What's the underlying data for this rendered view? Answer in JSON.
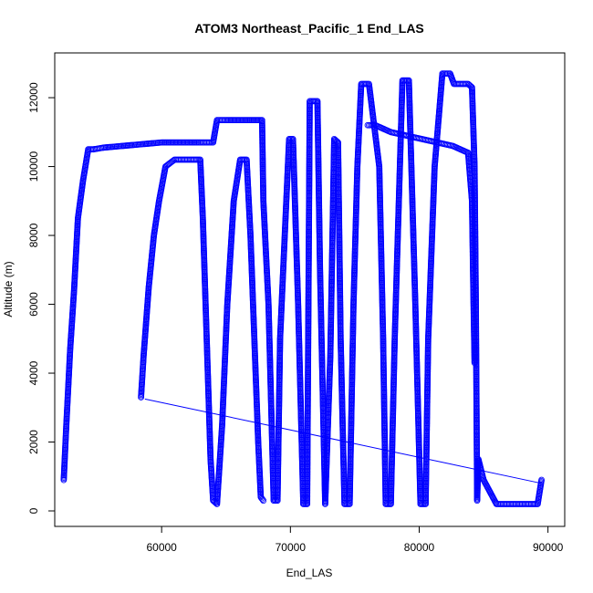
{
  "chart_data": {
    "type": "scatter",
    "title": "ATOM3 Northeast_Pacific_1 End_LAS",
    "xlabel": "End_LAS",
    "ylabel": "Altitude (m)",
    "xlim": [
      51700,
      91300
    ],
    "ylim": [
      -450,
      13300
    ],
    "x_ticks": [
      60000,
      70000,
      80000,
      90000
    ],
    "x_tick_labels": [
      "60000",
      "70000",
      "80000",
      "90000"
    ],
    "y_ticks": [
      0,
      2000,
      4000,
      6000,
      8000,
      10000,
      12000
    ],
    "y_tick_labels": [
      "0",
      "2000",
      "4000",
      "6000",
      "8000",
      "10000",
      "12000"
    ],
    "grid": false,
    "marker": "open-circle",
    "point_color": "#0000ff",
    "series": [
      {
        "style": "points",
        "x": [
          52400,
          52600,
          52900,
          53200,
          53500,
          53900,
          54300,
          54700,
          55500,
          57000,
          58500,
          60000,
          61500,
          63000,
          64000,
          64300,
          65000,
          66500,
          67800,
          67900,
          68300,
          68700,
          69000,
          69200,
          69500,
          69900,
          70200,
          70600,
          71000,
          71300,
          71500,
          72100,
          72300,
          72700,
          73100,
          73400,
          73700,
          73900,
          74200,
          74600,
          74900,
          75200,
          75500,
          75700,
          76100,
          76900,
          77200,
          77400,
          77800,
          78100,
          78500,
          78700,
          79200,
          79700,
          80100,
          80500,
          80700,
          81200,
          81800,
          82400,
          82700,
          83300,
          83800,
          84100,
          84300,
          84400,
          84500,
          84600,
          85000,
          86000,
          87000,
          88000,
          88200,
          88500,
          88800,
          89200,
          89500
        ],
        "y": [
          900,
          2500,
          4700,
          6400,
          8500,
          9600,
          10500,
          10500,
          10550,
          10600,
          10650,
          10700,
          10700,
          10700,
          10700,
          11350,
          11350,
          11350,
          11350,
          9000,
          6000,
          300,
          300,
          5000,
          7500,
          10800,
          10800,
          6000,
          200,
          200,
          11900,
          11900,
          7000,
          200,
          4500,
          10800,
          10700,
          5000,
          200,
          200,
          6000,
          10000,
          12400,
          12400,
          12400,
          10000,
          5000,
          200,
          200,
          5000,
          10000,
          12500,
          12500,
          6000,
          200,
          200,
          5000,
          10000,
          12700,
          12700,
          12400,
          12400,
          12400,
          12300,
          10000,
          6000,
          300,
          1500,
          900,
          200,
          200,
          200,
          200,
          200,
          200,
          200,
          900
        ]
      },
      {
        "style": "points",
        "x": [
          58400,
          58600,
          59000,
          59400,
          59800,
          60300,
          61000,
          62000,
          63000,
          63200,
          63500,
          63800,
          64000,
          64300,
          64700,
          65100,
          65600,
          66100,
          66600,
          66900,
          67200,
          67500,
          67700,
          67900
        ],
        "y": [
          3300,
          4500,
          6500,
          8000,
          9000,
          10000,
          10200,
          10200,
          10200,
          8500,
          5000,
          1500,
          300,
          200,
          2500,
          6000,
          9000,
          10200,
          10200,
          8000,
          5000,
          2000,
          400,
          300
        ]
      },
      {
        "style": "points",
        "x": [
          76000,
          76600,
          77200,
          77800,
          78400,
          79000,
          79600,
          80200,
          80800,
          81400,
          82000,
          82600,
          83200,
          83800,
          84100,
          84200,
          84300
        ],
        "y": [
          11200,
          11200,
          11100,
          11000,
          10950,
          10900,
          10850,
          10800,
          10750,
          10700,
          10650,
          10600,
          10500,
          10400,
          9000,
          6500,
          4300
        ]
      },
      {
        "style": "line",
        "x": [
          58700,
          89500
        ],
        "y": [
          3250,
          800
        ]
      }
    ]
  }
}
